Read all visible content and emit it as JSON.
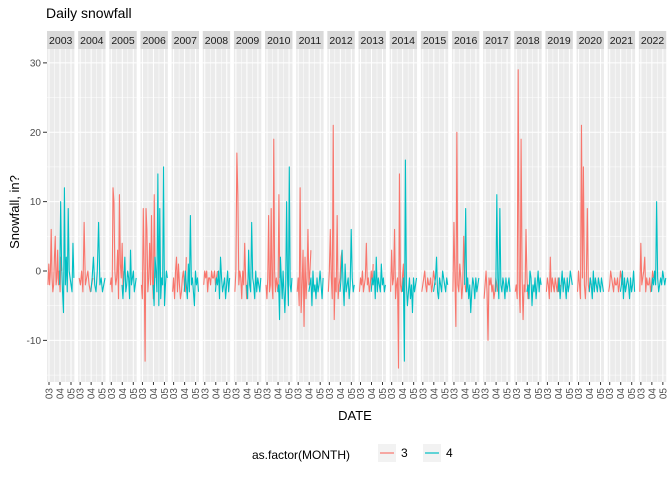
{
  "chart_data": {
    "type": "line",
    "title": "Daily snowfall",
    "xlabel": "DATE",
    "ylabel": "Snowfall, in?",
    "ylim": [
      -16,
      32
    ],
    "yticks": [
      -10,
      0,
      10,
      20,
      30
    ],
    "grid": true,
    "facet_by": "year",
    "facets": [
      "2003",
      "2004",
      "2005",
      "2006",
      "2007",
      "2008",
      "2009",
      "2010",
      "2011",
      "2012",
      "2013",
      "2014",
      "2015",
      "2016",
      "2017",
      "2018",
      "2019",
      "2020",
      "2021",
      "2022"
    ],
    "x_tick_labels": [
      "03",
      "04",
      "05"
    ],
    "legend": {
      "title": "as.factor(MONTH)",
      "position": "bottom",
      "entries": [
        {
          "label": "3",
          "color": "#F8766D"
        },
        {
          "label": "4",
          "color": "#00BFC4"
        }
      ]
    },
    "series": [
      {
        "name": "3",
        "color": "#F8766D",
        "month": 3,
        "values_by_facet": {
          "2003": [
            -2,
            1,
            -2,
            0,
            6,
            -1,
            -3,
            -2,
            2,
            5,
            -2,
            -1,
            3,
            -2,
            0,
            -3,
            2,
            0
          ],
          "2004": [
            -1,
            -2,
            0,
            -3,
            7,
            -2,
            -1,
            0,
            -2,
            -3,
            -2,
            -1
          ],
          "2005": [
            -2,
            -1,
            -3,
            12,
            10,
            0,
            -2,
            -1,
            3,
            -4,
            11,
            1,
            -1,
            4,
            -3,
            0
          ],
          "2006": [
            -2,
            -4,
            9,
            0,
            -13,
            9,
            6,
            -3,
            -1,
            4,
            -2,
            8,
            -1,
            -4,
            11,
            -1
          ],
          "2007": [
            -3,
            -1,
            -4,
            0,
            2,
            -3,
            1,
            -2,
            -4,
            -3,
            -1,
            0,
            -2,
            -3,
            2
          ],
          "2008": [
            -2,
            0,
            -1,
            0,
            -3,
            -1,
            -1,
            -2,
            0,
            -1,
            -1,
            0,
            -2,
            -1,
            0
          ],
          "2009": [
            -3,
            0,
            17,
            11,
            -2,
            0,
            -1,
            -4,
            0,
            -2,
            4,
            -1,
            -4,
            -2,
            0
          ],
          "2010": [
            -2,
            -4,
            -1,
            8,
            -3,
            -2,
            9,
            -2,
            -4,
            19,
            0,
            -3,
            -1,
            -2,
            -3,
            11,
            -1
          ],
          "2011": [
            -3,
            -1,
            -5,
            12,
            -6,
            -2,
            3,
            -8,
            2,
            -4,
            -1,
            6,
            -2,
            0,
            3
          ],
          "2012": [
            -3,
            0,
            6,
            -1,
            -4,
            21,
            -7,
            -1,
            -3,
            8,
            -4,
            -2,
            -1,
            2,
            3
          ],
          "2013": [
            -3,
            -1,
            -2,
            0,
            -3,
            -2,
            -1,
            4,
            -2,
            -1,
            -3,
            -2,
            0,
            -2,
            1
          ],
          "2014": [
            -3,
            3,
            -2,
            -1,
            6,
            -4,
            -2,
            -1,
            -14,
            14,
            -2,
            -3,
            -1,
            1,
            -4
          ],
          "2015": [
            -3,
            -2,
            -1,
            0,
            -2,
            -3,
            -1,
            -2,
            -2,
            -1,
            -3,
            -2,
            0,
            -1,
            -2
          ],
          "2016": [
            -3,
            7,
            -1,
            -8,
            20,
            -2,
            -3,
            1,
            -1,
            -4,
            -2,
            5,
            -1,
            -3,
            -2
          ],
          "2017": [
            -4,
            -2,
            0,
            -3,
            -10,
            -1,
            -2,
            -1,
            -3,
            -2,
            -4,
            -3,
            -1,
            -2,
            -3
          ],
          "2018": [
            -3,
            -2,
            -4,
            29,
            -2,
            -6,
            19,
            -1,
            -7,
            -2,
            -3,
            6,
            -1,
            -4,
            -2
          ],
          "2019": [
            -3,
            -1,
            -2,
            -4,
            2,
            -3,
            -1,
            -2,
            -3,
            -1,
            -2,
            -3,
            -1,
            -3,
            -2
          ],
          "2020": [
            -3,
            0,
            -2,
            -4,
            21,
            -1,
            15,
            -2,
            -4,
            -1,
            9,
            -2,
            -3,
            -1,
            -2
          ],
          "2021": [
            -3,
            -2,
            0,
            -1,
            -2,
            -3,
            -1,
            -2,
            -2,
            -1,
            -3,
            -2,
            0,
            -1,
            -2
          ],
          "2022": [
            -3,
            4,
            -2,
            -1,
            0,
            2,
            -3,
            -1,
            -2,
            -2,
            -1,
            -3,
            -2,
            0,
            -1
          ]
        }
      },
      {
        "name": "4",
        "color": "#00BFC4",
        "month": 4,
        "values_by_facet": {
          "2003": [
            -2,
            10,
            1,
            -3,
            -6,
            12,
            -2,
            2,
            -3,
            9,
            0,
            -1,
            -2,
            -3,
            4,
            -1
          ],
          "2004": [
            -3,
            -1,
            2,
            -2,
            -3,
            0,
            7,
            -2,
            -1,
            -3,
            -2,
            -1
          ],
          "2005": [
            -2,
            -4,
            -1,
            2,
            -3,
            -2,
            0,
            -1,
            -4,
            3,
            -2,
            -1,
            0,
            -3,
            -2,
            -1
          ],
          "2006": [
            -2,
            -5,
            2,
            0,
            -3,
            14,
            -5,
            9,
            -4,
            -1,
            -2,
            15,
            -5,
            -2,
            0,
            -1
          ],
          "2007": [
            -3,
            0,
            -2,
            -4,
            1,
            -3,
            8,
            -2,
            -1,
            -3,
            -5,
            0,
            -2,
            -1,
            -3
          ],
          "2008": [
            -3,
            -1,
            -2,
            0,
            -4,
            2,
            -1,
            -3,
            -2,
            -1,
            -4,
            -2,
            0,
            -3,
            -1
          ],
          "2009": [
            -2,
            -4,
            3,
            -2,
            -3,
            7,
            -1,
            -2,
            -4,
            0,
            -3,
            -1,
            -2,
            -3,
            -1
          ],
          "2010": [
            -3,
            -2,
            -7,
            2,
            -1,
            -4,
            0,
            -3,
            -6,
            -2,
            10,
            -1,
            -5,
            15,
            -2,
            -3,
            -1
          ],
          "2011": [
            -3,
            -2,
            -1,
            -5,
            0,
            -3,
            -2,
            -4,
            -1,
            -3,
            -2,
            0,
            -2,
            -4,
            -1
          ],
          "2012": [
            -3,
            -1,
            3,
            -2,
            -5,
            1,
            -3,
            -2,
            -1,
            -4,
            -2,
            6,
            -1,
            -3,
            -2
          ],
          "2013": [
            -3,
            -1,
            -2,
            0,
            -4,
            2,
            -3,
            -1,
            -2,
            -3,
            1,
            -2,
            -1,
            -3,
            -2
          ],
          "2014": [
            -3,
            -1,
            -13,
            16,
            -2,
            -5,
            -3,
            -1,
            -4,
            -2,
            -6,
            -1,
            -3,
            -2,
            -1
          ],
          "2015": [
            -3,
            -2,
            -1,
            2,
            -3,
            -4,
            -1,
            -2,
            -3,
            0,
            -1,
            -2,
            -3,
            -1,
            -2
          ],
          "2016": [
            -2,
            9,
            -3,
            -1,
            -4,
            -2,
            -6,
            -3,
            -1,
            -2,
            -4,
            -1,
            -3,
            -2,
            -1
          ],
          "2017": [
            -3,
            11,
            -1,
            -4,
            9,
            -2,
            -3,
            -1,
            -2,
            -4,
            -1,
            -3,
            -2,
            -1,
            -3
          ],
          "2018": [
            -3,
            -2,
            -4,
            0,
            -1,
            -5,
            -2,
            -3,
            -1,
            -4,
            -2,
            0,
            -3,
            -1,
            -2
          ],
          "2019": [
            -3,
            -1,
            -4,
            -2,
            0,
            -3,
            -1,
            -2,
            -4,
            -1,
            -3,
            -2,
            0,
            -1,
            -2
          ],
          "2020": [
            -3,
            -1,
            -2,
            -4,
            0,
            -3,
            -1,
            -2,
            -3,
            -1,
            -2,
            -3,
            -1,
            -2,
            -3
          ],
          "2021": [
            -3,
            -2,
            0,
            -4,
            -1,
            -3,
            -2,
            -1,
            -2,
            -4,
            -1,
            -3,
            -2,
            0,
            -3
          ],
          "2022": [
            -3,
            -1,
            -2,
            0,
            -2,
            10,
            -1,
            -3,
            -2,
            -1,
            -2,
            0,
            -1,
            -2,
            -1
          ]
        }
      }
    ]
  }
}
